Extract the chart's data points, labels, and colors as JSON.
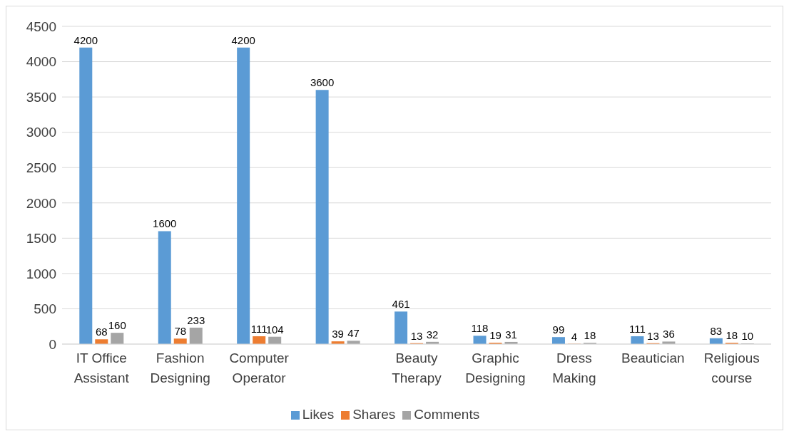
{
  "chart_data": {
    "type": "bar",
    "categories": [
      "IT Office Assistant",
      "Fashion Designing",
      "Computer Operator",
      null,
      "Beauty Therapy",
      "Graphic Designing",
      "Dress Making",
      "Beautician",
      "Religious course"
    ],
    "series": [
      {
        "name": "Likes",
        "color": "#5b9bd5",
        "values": [
          4200,
          1600,
          4200,
          3600,
          461,
          118,
          99,
          111,
          83
        ]
      },
      {
        "name": "Shares",
        "color": "#ed7d31",
        "values": [
          68,
          78,
          111,
          39,
          13,
          19,
          4,
          13,
          18
        ]
      },
      {
        "name": "Comments",
        "color": "#a5a5a5",
        "values": [
          160,
          233,
          104,
          47,
          32,
          31,
          18,
          36,
          10
        ]
      }
    ],
    "ylim": [
      0,
      4500
    ],
    "yticks": [
      0,
      500,
      1000,
      1500,
      2000,
      2500,
      3000,
      3500,
      4000,
      4500
    ],
    "grid": "y",
    "legend": "bottom",
    "data_labels": true
  }
}
